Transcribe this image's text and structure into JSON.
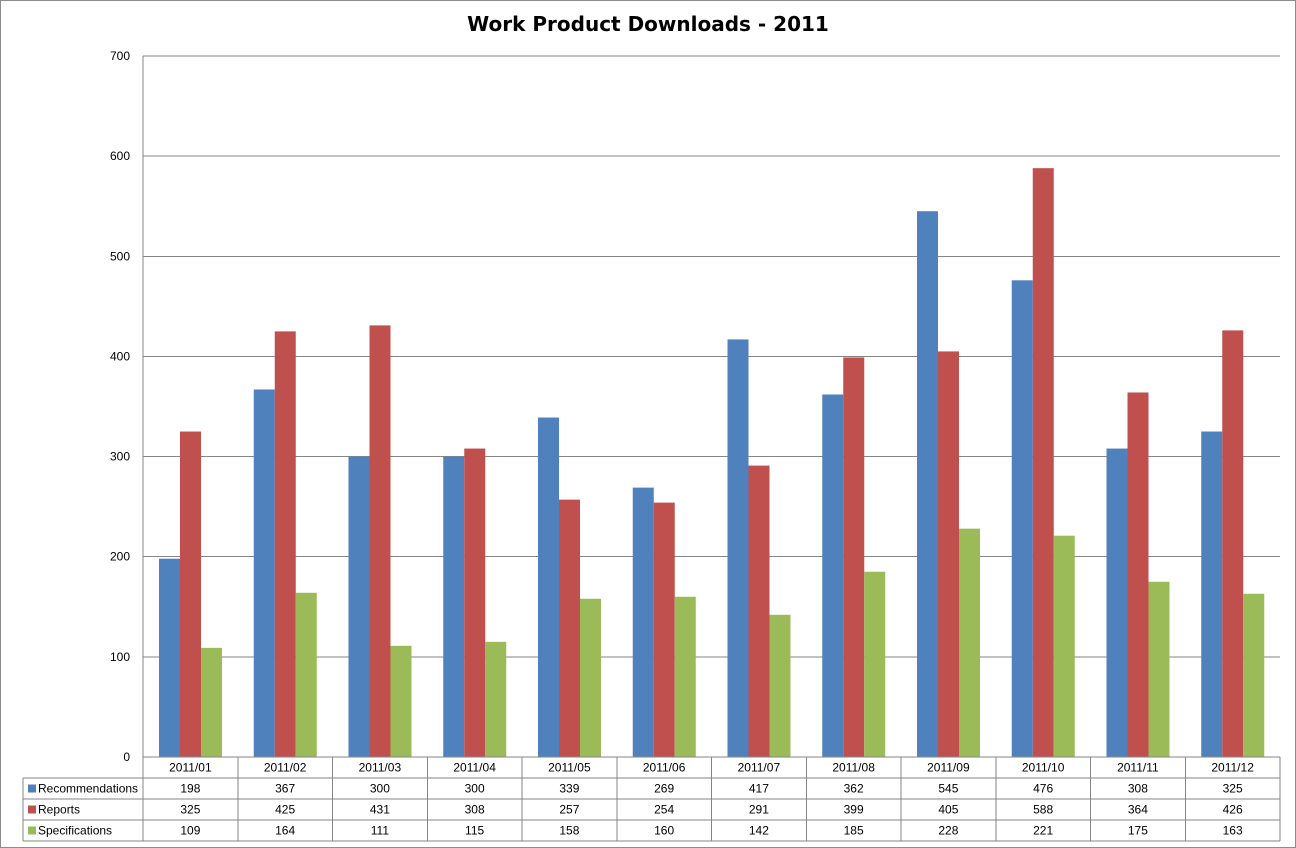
{
  "chart_data": {
    "type": "bar",
    "title": "Work Product Downloads - 2011",
    "xlabel": "",
    "ylabel": "",
    "ylim": [
      0,
      700
    ],
    "yticks": [
      0,
      100,
      200,
      300,
      400,
      500,
      600,
      700
    ],
    "grid": true,
    "legend": "data-table",
    "categories": [
      "2011/01",
      "2011/02",
      "2011/03",
      "2011/04",
      "2011/05",
      "2011/06",
      "2011/07",
      "2011/08",
      "2011/09",
      "2011/10",
      "2011/11",
      "2011/12"
    ],
    "series": [
      {
        "name": "Recommendations",
        "color": "#4f81bd",
        "values": [
          198,
          367,
          300,
          300,
          339,
          269,
          417,
          362,
          545,
          476,
          308,
          325
        ]
      },
      {
        "name": "Reports",
        "color": "#c0504d",
        "values": [
          325,
          425,
          431,
          308,
          257,
          254,
          291,
          399,
          405,
          588,
          364,
          426
        ]
      },
      {
        "name": "Specifications",
        "color": "#9bbb59",
        "values": [
          109,
          164,
          111,
          115,
          158,
          160,
          142,
          185,
          228,
          221,
          175,
          163
        ]
      }
    ]
  }
}
